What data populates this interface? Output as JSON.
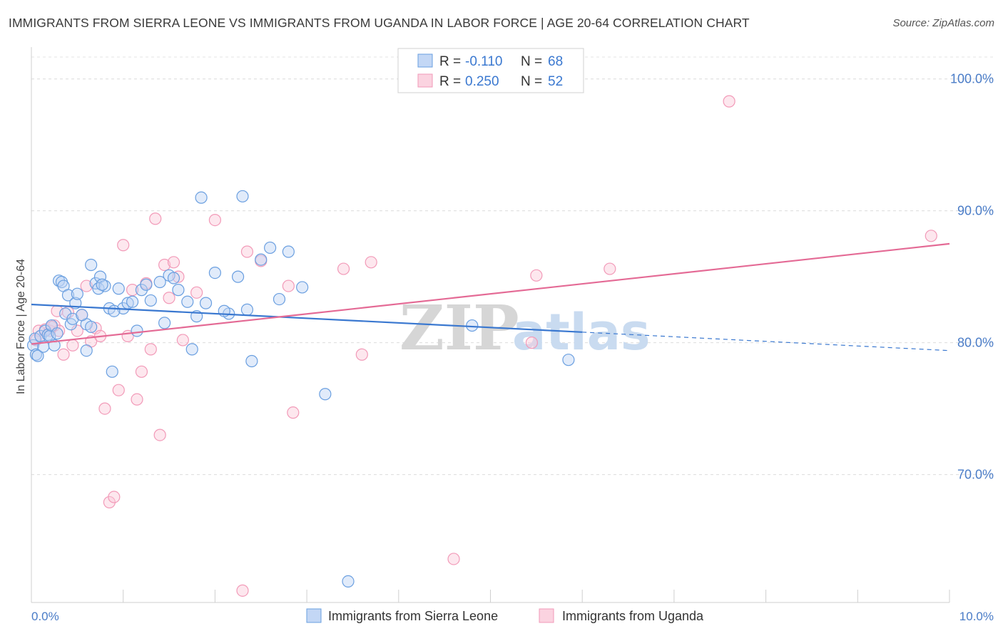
{
  "title": "IMMIGRANTS FROM SIERRA LEONE VS IMMIGRANTS FROM UGANDA IN LABOR FORCE | AGE 20-64 CORRELATION CHART",
  "source": "Source: ZipAtlas.com",
  "colors": {
    "blue": "#6a9fe0",
    "blue_line": "#3a78d0",
    "pink": "#f29ab8",
    "pink_line": "#e46a95",
    "axis_label": "#4a7cc7"
  },
  "legend_box": {
    "rows": [
      {
        "r_label": "R =",
        "r_value": "-0.110",
        "n_label": "N =",
        "n_value": "68"
      },
      {
        "r_label": "R =",
        "r_value": "0.250",
        "n_label": "N =",
        "n_value": "52"
      }
    ]
  },
  "chart_data": {
    "type": "scatter",
    "title": "IMMIGRANTS FROM SIERRA LEONE VS IMMIGRANTS FROM UGANDA IN LABOR FORCE | AGE 20-64 CORRELATION CHART",
    "xlabel": "",
    "ylabel": "In Labor Force | Age 20-64",
    "xlim": [
      0,
      10
    ],
    "ylim": [
      60.3,
      102.2
    ],
    "x_tick_labels": [
      "0.0%",
      "10.0%"
    ],
    "y_ticks": [
      70,
      80,
      90,
      100
    ],
    "y_tick_labels": [
      "70.0%",
      "80.0%",
      "90.0%",
      "100.0%"
    ],
    "grid": true,
    "legend_position": "bottom-center",
    "watermark": "ZIPatlas",
    "series": [
      {
        "name": "Immigrants from Sierra Leone",
        "color": "#6a9fe0",
        "trend": {
          "x": [
            0,
            6.0
          ],
          "y": [
            82.9,
            80.8
          ],
          "dashed_extension": {
            "x": [
              6.0,
              10.0
            ],
            "y": [
              80.8,
              79.4
            ]
          }
        },
        "points": [
          [
            0.02,
            79.8
          ],
          [
            0.04,
            80.3
          ],
          [
            0.05,
            79.1
          ],
          [
            0.07,
            79.0
          ],
          [
            0.1,
            80.5
          ],
          [
            0.13,
            79.7
          ],
          [
            0.15,
            80.9
          ],
          [
            0.18,
            80.6
          ],
          [
            0.2,
            80.5
          ],
          [
            0.22,
            81.3
          ],
          [
            0.25,
            79.8
          ],
          [
            0.28,
            80.7
          ],
          [
            0.3,
            84.7
          ],
          [
            0.33,
            84.6
          ],
          [
            0.35,
            84.3
          ],
          [
            0.37,
            82.2
          ],
          [
            0.4,
            83.6
          ],
          [
            0.43,
            81.4
          ],
          [
            0.45,
            81.8
          ],
          [
            0.48,
            83.0
          ],
          [
            0.5,
            83.7
          ],
          [
            0.6,
            81.4
          ],
          [
            0.65,
            81.2
          ],
          [
            0.7,
            84.5
          ],
          [
            0.73,
            84.1
          ],
          [
            0.75,
            85.0
          ],
          [
            0.8,
            84.3
          ],
          [
            0.85,
            82.6
          ],
          [
            0.88,
            77.8
          ],
          [
            0.95,
            84.1
          ],
          [
            1.0,
            82.6
          ],
          [
            1.05,
            83.0
          ],
          [
            1.1,
            83.1
          ],
          [
            1.15,
            80.9
          ],
          [
            1.2,
            84.0
          ],
          [
            1.25,
            84.4
          ],
          [
            1.4,
            84.6
          ],
          [
            1.5,
            85.1
          ],
          [
            1.55,
            84.9
          ],
          [
            1.6,
            84.0
          ],
          [
            1.7,
            83.1
          ],
          [
            1.75,
            79.5
          ],
          [
            1.8,
            82.0
          ],
          [
            1.85,
            91.0
          ],
          [
            1.9,
            83.0
          ],
          [
            2.0,
            85.3
          ],
          [
            2.15,
            82.2
          ],
          [
            2.25,
            85.0
          ],
          [
            2.3,
            91.1
          ],
          [
            2.35,
            82.5
          ],
          [
            2.4,
            78.6
          ],
          [
            2.5,
            86.3
          ],
          [
            2.6,
            87.2
          ],
          [
            2.7,
            83.3
          ],
          [
            2.8,
            86.9
          ],
          [
            2.95,
            84.2
          ],
          [
            3.2,
            76.1
          ],
          [
            3.45,
            61.9
          ],
          [
            4.8,
            81.3
          ],
          [
            5.85,
            78.7
          ],
          [
            0.65,
            85.9
          ],
          [
            0.77,
            84.4
          ],
          [
            0.55,
            82.1
          ],
          [
            1.45,
            81.5
          ],
          [
            0.9,
            82.4
          ],
          [
            1.3,
            83.2
          ],
          [
            0.6,
            79.4
          ],
          [
            2.1,
            82.4
          ]
        ]
      },
      {
        "name": "Immigrants from Uganda",
        "color": "#f29ab8",
        "trend": {
          "x": [
            0,
            10.0
          ],
          "y": [
            79.9,
            87.5
          ]
        },
        "points": [
          [
            0.05,
            80.2
          ],
          [
            0.08,
            80.9
          ],
          [
            0.1,
            80.5
          ],
          [
            0.15,
            81.0
          ],
          [
            0.2,
            80.9
          ],
          [
            0.25,
            81.3
          ],
          [
            0.28,
            82.4
          ],
          [
            0.3,
            80.9
          ],
          [
            0.35,
            79.1
          ],
          [
            0.4,
            82.3
          ],
          [
            0.45,
            79.8
          ],
          [
            0.5,
            80.9
          ],
          [
            0.55,
            82.1
          ],
          [
            0.6,
            84.3
          ],
          [
            0.65,
            80.1
          ],
          [
            0.7,
            81.1
          ],
          [
            0.75,
            80.5
          ],
          [
            0.8,
            75.0
          ],
          [
            0.85,
            67.9
          ],
          [
            0.9,
            68.3
          ],
          [
            0.95,
            76.4
          ],
          [
            1.0,
            87.4
          ],
          [
            1.05,
            80.5
          ],
          [
            1.1,
            84.0
          ],
          [
            1.15,
            75.7
          ],
          [
            1.2,
            77.8
          ],
          [
            1.25,
            84.5
          ],
          [
            1.3,
            79.5
          ],
          [
            1.35,
            89.4
          ],
          [
            1.4,
            73.0
          ],
          [
            1.45,
            85.9
          ],
          [
            1.5,
            83.4
          ],
          [
            1.55,
            86.1
          ],
          [
            1.6,
            85.0
          ],
          [
            1.65,
            80.2
          ],
          [
            1.8,
            83.8
          ],
          [
            2.0,
            89.3
          ],
          [
            2.3,
            61.2
          ],
          [
            2.35,
            86.9
          ],
          [
            2.5,
            86.2
          ],
          [
            2.8,
            84.3
          ],
          [
            2.85,
            74.7
          ],
          [
            3.4,
            85.6
          ],
          [
            3.6,
            79.1
          ],
          [
            3.7,
            86.1
          ],
          [
            4.6,
            63.6
          ],
          [
            5.45,
            80.0
          ],
          [
            5.5,
            85.1
          ],
          [
            6.3,
            85.6
          ],
          [
            7.6,
            98.3
          ],
          [
            9.8,
            88.1
          ],
          [
            0.22,
            81.2
          ]
        ]
      }
    ]
  },
  "bottom_legend": {
    "items": [
      {
        "label": "Immigrants from Sierra Leone"
      },
      {
        "label": "Immigrants from Uganda"
      }
    ]
  }
}
